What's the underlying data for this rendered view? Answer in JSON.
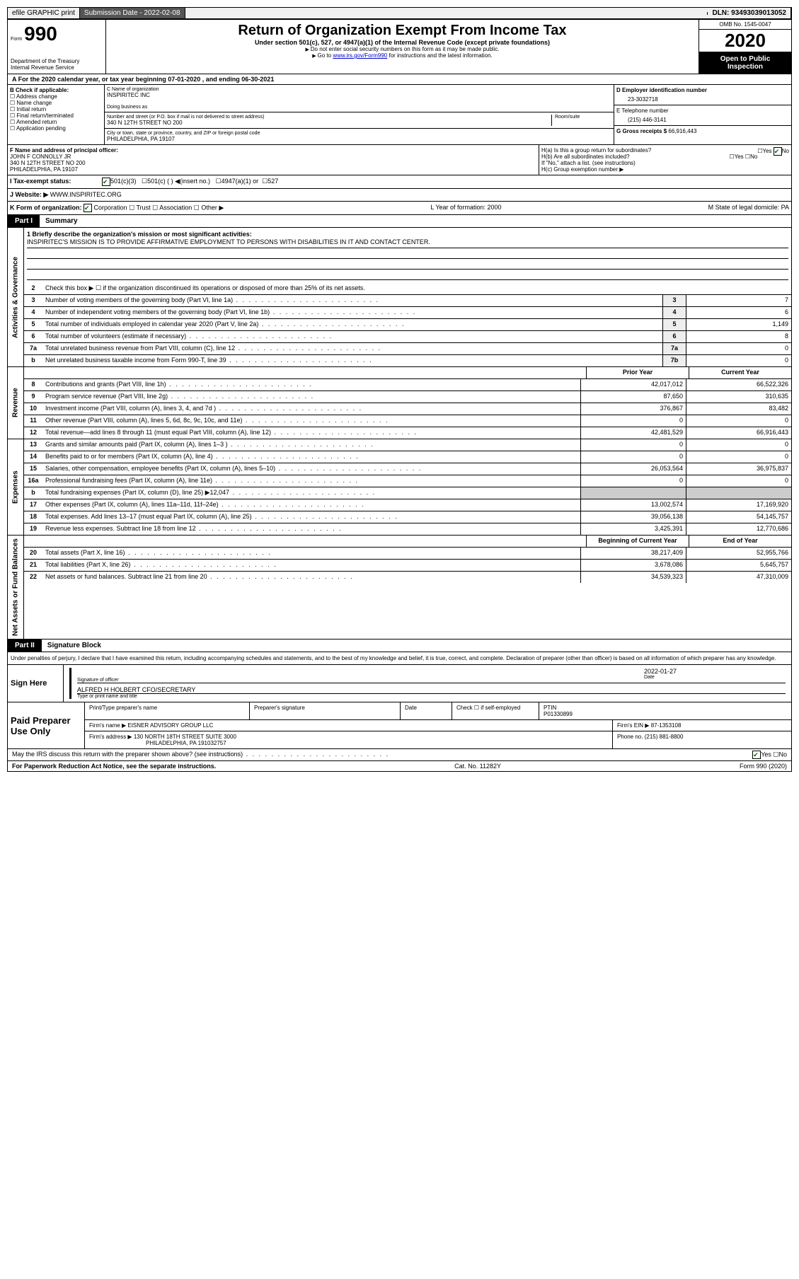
{
  "topbar": {
    "efile": "efile GRAPHIC print",
    "sub_label": "Submission Date - 2022-02-08",
    "dln": "DLN: 93493039013052"
  },
  "header": {
    "form_prefix": "Form",
    "form_num": "990",
    "dept": "Department of the Treasury\nInternal Revenue Service",
    "title": "Return of Organization Exempt From Income Tax",
    "subtitle": "Under section 501(c), 527, or 4947(a)(1) of the Internal Revenue Code (except private foundations)",
    "note1": "Do not enter social security numbers on this form as it may be made public.",
    "note2_pre": "Go to ",
    "note2_link": "www.irs.gov/Form990",
    "note2_post": " for instructions and the latest information.",
    "omb": "OMB No. 1545-0047",
    "year": "2020",
    "open": "Open to Public Inspection"
  },
  "line_a": "A For the 2020 calendar year, or tax year beginning 07-01-2020  , and ending 06-30-2021",
  "box_b": {
    "hdr": "B Check if applicable:",
    "opts": [
      "Address change",
      "Name change",
      "Initial return",
      "Final return/terminated",
      "Amended return",
      "Application pending"
    ]
  },
  "box_c": {
    "name_lbl": "C Name of organization",
    "name": "INSPIRITEC INC",
    "dba_lbl": "Doing business as",
    "addr_lbl": "Number and street (or P.O. box if mail is not delivered to street address)",
    "room_lbl": "Room/suite",
    "addr": "340 N 12TH STREET NO 200",
    "city_lbl": "City or town, state or province, country, and ZIP or foreign postal code",
    "city": "PHILADELPHIA, PA  19107"
  },
  "box_d": {
    "lbl": "D Employer identification number",
    "val": "23-3032718",
    "tel_lbl": "E Telephone number",
    "tel": "(215) 446-3141",
    "g_lbl": "G Gross receipts $",
    "g_val": "66,916,443"
  },
  "box_f": {
    "lbl": "F Name and address of principal officer:",
    "name": "JOHN F CONNOLLY JR",
    "addr1": "340 N 12TH STREET NO 200",
    "addr2": "PHILADELPHIA, PA  19107"
  },
  "box_h": {
    "a": "H(a)  Is this a group return for subordinates?",
    "b": "H(b)  Are all subordinates included?",
    "note": "If \"No,\" attach a list. (see instructions)",
    "c": "H(c)  Group exemption number ▶"
  },
  "row_i": {
    "lbl": "I  Tax-exempt status:",
    "o1": "501(c)(3)",
    "o2": "501(c) (  ) ◀(insert no.)",
    "o3": "4947(a)(1) or",
    "o4": "527"
  },
  "row_j": {
    "lbl": "J  Website: ▶",
    "val": "WWW.INSPIRITEC.ORG"
  },
  "row_k": {
    "lbl": "K Form of organization:",
    "o1": "Corporation",
    "o2": "Trust",
    "o3": "Association",
    "o4": "Other ▶",
    "l": "L Year of formation: 2000",
    "m": "M State of legal domicile: PA"
  },
  "part1": {
    "tag": "Part I",
    "title": "Summary",
    "q1_lbl": "1  Briefly describe the organization's mission or most significant activities:",
    "q1_val": "INSPIRITEC'S MISSION IS TO PROVIDE AFFIRMATIVE EMPLOYMENT TO PERSONS WITH DISABILITIES IN IT AND CONTACT CENTER.",
    "q2": "Check this box ▶ ☐  if the organization discontinued its operations or disposed of more than 25% of its net assets."
  },
  "gov_rows": [
    {
      "n": "3",
      "d": "Number of voting members of the governing body (Part VI, line 1a)",
      "c": "3",
      "v": "7"
    },
    {
      "n": "4",
      "d": "Number of independent voting members of the governing body (Part VI, line 1b)",
      "c": "4",
      "v": "6"
    },
    {
      "n": "5",
      "d": "Total number of individuals employed in calendar year 2020 (Part V, line 2a)",
      "c": "5",
      "v": "1,149"
    },
    {
      "n": "6",
      "d": "Total number of volunteers (estimate if necessary)",
      "c": "6",
      "v": "8"
    },
    {
      "n": "7a",
      "d": "Total unrelated business revenue from Part VIII, column (C), line 12",
      "c": "7a",
      "v": "0"
    },
    {
      "n": "b",
      "d": "Net unrelated business taxable income from Form 990-T, line 39",
      "c": "7b",
      "v": "0"
    }
  ],
  "rev_hdr": {
    "py": "Prior Year",
    "cy": "Current Year"
  },
  "rev_rows": [
    {
      "n": "8",
      "d": "Contributions and grants (Part VIII, line 1h)",
      "py": "42,017,012",
      "cy": "66,522,326"
    },
    {
      "n": "9",
      "d": "Program service revenue (Part VIII, line 2g)",
      "py": "87,650",
      "cy": "310,635"
    },
    {
      "n": "10",
      "d": "Investment income (Part VIII, column (A), lines 3, 4, and 7d )",
      "py": "376,867",
      "cy": "83,482"
    },
    {
      "n": "11",
      "d": "Other revenue (Part VIII, column (A), lines 5, 6d, 8c, 9c, 10c, and 11e)",
      "py": "0",
      "cy": "0"
    },
    {
      "n": "12",
      "d": "Total revenue—add lines 8 through 11 (must equal Part VIII, column (A), line 12)",
      "py": "42,481,529",
      "cy": "66,916,443"
    }
  ],
  "exp_rows": [
    {
      "n": "13",
      "d": "Grants and similar amounts paid (Part IX, column (A), lines 1–3 )",
      "py": "0",
      "cy": "0"
    },
    {
      "n": "14",
      "d": "Benefits paid to or for members (Part IX, column (A), line 4)",
      "py": "0",
      "cy": "0"
    },
    {
      "n": "15",
      "d": "Salaries, other compensation, employee benefits (Part IX, column (A), lines 5–10)",
      "py": "26,053,564",
      "cy": "36,975,837"
    },
    {
      "n": "16a",
      "d": "Professional fundraising fees (Part IX, column (A), line 11e)",
      "py": "0",
      "cy": "0"
    },
    {
      "n": "b",
      "d": "Total fundraising expenses (Part IX, column (D), line 25) ▶12,047",
      "py": "",
      "cy": "",
      "shade": true
    },
    {
      "n": "17",
      "d": "Other expenses (Part IX, column (A), lines 11a–11d, 11f–24e)",
      "py": "13,002,574",
      "cy": "17,169,920"
    },
    {
      "n": "18",
      "d": "Total expenses. Add lines 13–17 (must equal Part IX, column (A), line 25)",
      "py": "39,056,138",
      "cy": "54,145,757"
    },
    {
      "n": "19",
      "d": "Revenue less expenses. Subtract line 18 from line 12",
      "py": "3,425,391",
      "cy": "12,770,686"
    }
  ],
  "na_hdr": {
    "py": "Beginning of Current Year",
    "cy": "End of Year"
  },
  "na_rows": [
    {
      "n": "20",
      "d": "Total assets (Part X, line 16)",
      "py": "38,217,409",
      "cy": "52,955,766"
    },
    {
      "n": "21",
      "d": "Total liabilities (Part X, line 26)",
      "py": "3,678,086",
      "cy": "5,645,757"
    },
    {
      "n": "22",
      "d": "Net assets or fund balances. Subtract line 21 from line 20",
      "py": "34,539,323",
      "cy": "47,310,009"
    }
  ],
  "part2": {
    "tag": "Part II",
    "title": "Signature Block",
    "perjury": "Under penalties of perjury, I declare that I have examined this return, including accompanying schedules and statements, and to the best of my knowledge and belief, it is true, correct, and complete. Declaration of preparer (other than officer) is based on all information of which preparer has any knowledge."
  },
  "sign": {
    "here": "Sign Here",
    "sig_lbl": "Signature of officer",
    "date_lbl": "Date",
    "date": "2022-01-27",
    "name": "ALFRED H HOLBERT CFO/SECRETARY",
    "name_lbl": "Type or print name and title"
  },
  "prep": {
    "hdr": "Paid Preparer Use Only",
    "c1": "Print/Type preparer's name",
    "c2": "Preparer's signature",
    "c3": "Date",
    "c4": "Check ☐ if self-employed",
    "c5_lbl": "PTIN",
    "c5": "P01330899",
    "firm_lbl": "Firm's name  ▶",
    "firm": "EISNER ADVISORY GROUP LLC",
    "ein_lbl": "Firm's EIN ▶",
    "ein": "87-1353108",
    "addr_lbl": "Firm's address ▶",
    "addr1": "130 NORTH 18TH STREET SUITE 3000",
    "addr2": "PHILADELPHIA, PA  191032757",
    "phone_lbl": "Phone no.",
    "phone": "(215) 881-8800"
  },
  "footer": {
    "discuss": "May the IRS discuss this return with the preparer shown above? (see instructions)",
    "paperwork": "For Paperwork Reduction Act Notice, see the separate instructions.",
    "cat": "Cat. No. 11282Y",
    "form": "Form 990 (2020)"
  },
  "side_labels": {
    "gov": "Activities & Governance",
    "rev": "Revenue",
    "exp": "Expenses",
    "na": "Net Assets or Fund Balances"
  },
  "yn": {
    "yes": "Yes",
    "no": "No"
  }
}
